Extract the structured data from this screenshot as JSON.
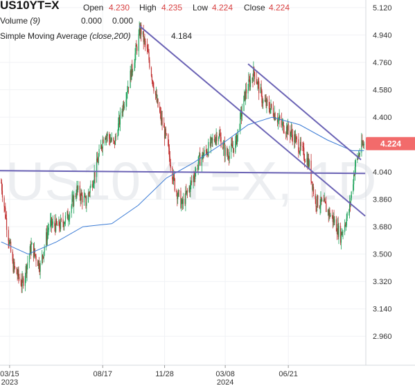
{
  "header": {
    "symbol": "US10YT=X",
    "open_label": "Open",
    "open_value": "4.230",
    "high_label": "High",
    "high_value": "4.235",
    "low_label": "Low",
    "low_value": "4.224",
    "close_label": "Close",
    "close_value": "4.224"
  },
  "indicators": {
    "volume_label": "Volume",
    "volume_param": "(9)",
    "volume_value_1": "0.000",
    "volume_value_2": "0.000",
    "sma_label": "Simple Moving Average",
    "sma_param": "(close,200)",
    "sma_value": "4.184"
  },
  "watermark": "US10YT=X, 1D",
  "colors": {
    "up": "#1fa35b",
    "down": "#c03030",
    "sma": "#3a7bd5",
    "trendline": "#6b63b5",
    "last_price_bg": "#f26b6b",
    "value_red": "#d94040",
    "value_blue": "#2d6ed6"
  },
  "chart_data": {
    "type": "candlestick",
    "y_axis": {
      "min": 2.87,
      "max": 5.17,
      "ticks": [
        "5.120",
        "4.940",
        "4.760",
        "4.580",
        "4.400",
        "4.220",
        "4.040",
        "3.860",
        "3.680",
        "3.500",
        "3.320",
        "3.140",
        "2.960"
      ],
      "position": "right"
    },
    "x_axis": {
      "ticks": [
        {
          "label": "03/15",
          "year": "2023",
          "date": "2023-03-15"
        },
        {
          "label": "08/17",
          "year": "",
          "date": "2023-08-17"
        },
        {
          "label": "11/28",
          "year": "",
          "date": "2023-11-28"
        },
        {
          "label": "03/08",
          "year": "2024",
          "date": "2024-03-08"
        },
        {
          "label": "06/21",
          "year": "",
          "date": "2024-06-21"
        }
      ]
    },
    "last_price": "4.224",
    "price_series": [
      [
        "2023-03-01",
        3.97
      ],
      [
        "2023-03-10",
        3.7
      ],
      [
        "2023-03-20",
        3.43
      ],
      [
        "2023-04-05",
        3.3
      ],
      [
        "2023-04-20",
        3.55
      ],
      [
        "2023-05-05",
        3.42
      ],
      [
        "2023-05-20",
        3.7
      ],
      [
        "2023-06-05",
        3.68
      ],
      [
        "2023-06-20",
        3.75
      ],
      [
        "2023-07-05",
        3.92
      ],
      [
        "2023-07-20",
        3.84
      ],
      [
        "2023-08-05",
        4.05
      ],
      [
        "2023-08-20",
        4.3
      ],
      [
        "2023-09-05",
        4.22
      ],
      [
        "2023-09-20",
        4.48
      ],
      [
        "2023-10-05",
        4.72
      ],
      [
        "2023-10-19",
        4.98
      ],
      [
        "2023-11-01",
        4.8
      ],
      [
        "2023-11-15",
        4.5
      ],
      [
        "2023-12-01",
        4.25
      ],
      [
        "2023-12-15",
        3.95
      ],
      [
        "2023-12-27",
        3.82
      ],
      [
        "2024-01-10",
        3.95
      ],
      [
        "2024-01-25",
        4.12
      ],
      [
        "2024-02-10",
        4.2
      ],
      [
        "2024-02-25",
        4.3
      ],
      [
        "2024-03-10",
        4.15
      ],
      [
        "2024-03-25",
        4.22
      ],
      [
        "2024-04-10",
        4.55
      ],
      [
        "2024-04-25",
        4.7
      ],
      [
        "2024-05-10",
        4.5
      ],
      [
        "2024-05-25",
        4.45
      ],
      [
        "2024-06-10",
        4.35
      ],
      [
        "2024-06-25",
        4.3
      ],
      [
        "2024-07-10",
        4.2
      ],
      [
        "2024-07-25",
        4.1
      ],
      [
        "2024-08-05",
        3.85
      ],
      [
        "2024-08-20",
        3.82
      ],
      [
        "2024-09-05",
        3.72
      ],
      [
        "2024-09-16",
        3.62
      ],
      [
        "2024-09-30",
        3.78
      ],
      [
        "2024-10-10",
        4.08
      ],
      [
        "2024-10-20",
        4.2
      ],
      [
        "2024-10-25",
        4.224
      ]
    ],
    "sma_series": [
      [
        "2023-03-01",
        3.58
      ],
      [
        "2023-04-15",
        3.5
      ],
      [
        "2023-06-01",
        3.58
      ],
      [
        "2023-07-15",
        3.68
      ],
      [
        "2023-09-01",
        3.7
      ],
      [
        "2023-10-15",
        3.82
      ],
      [
        "2023-12-01",
        4.0
      ],
      [
        "2024-01-15",
        4.1
      ],
      [
        "2024-03-01",
        4.22
      ],
      [
        "2024-04-15",
        4.35
      ],
      [
        "2024-05-25",
        4.4
      ],
      [
        "2024-07-10",
        4.35
      ],
      [
        "2024-08-25",
        4.25
      ],
      [
        "2024-10-05",
        4.18
      ],
      [
        "2024-10-25",
        4.18
      ]
    ],
    "trendlines": [
      {
        "from": [
          "2023-10-17",
          5.0
        ],
        "to": [
          "2024-10-27",
          3.75
        ]
      },
      {
        "from": [
          "2024-04-15",
          4.75
        ],
        "to": [
          "2024-10-20",
          4.12
        ]
      },
      {
        "from": [
          "2023-01-01",
          4.05
        ],
        "to": [
          "2024-10-27",
          4.03
        ]
      }
    ]
  }
}
